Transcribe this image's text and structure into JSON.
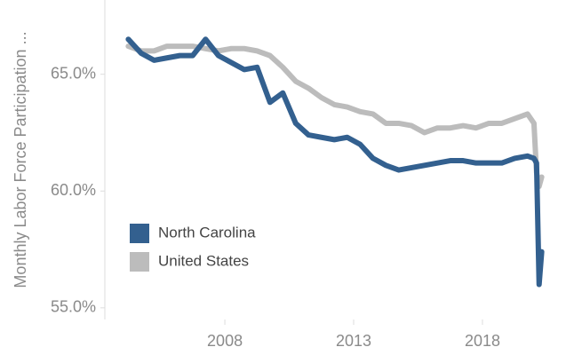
{
  "chart_data": {
    "type": "line",
    "y_label": "Monthly Labor Force Participation ...",
    "x": [
      2004.25,
      2004.75,
      2005.25,
      2005.75,
      2006.25,
      2006.75,
      2007.25,
      2007.75,
      2008.25,
      2008.75,
      2009.25,
      2009.75,
      2010.25,
      2010.75,
      2011.25,
      2011.75,
      2012.25,
      2012.75,
      2013.25,
      2013.75,
      2014.25,
      2014.75,
      2015.25,
      2015.75,
      2016.25,
      2016.75,
      2017.25,
      2017.75,
      2018.25,
      2018.75,
      2019.25,
      2019.75,
      2020.0,
      2020.1,
      2020.2,
      2020.3
    ],
    "series": [
      {
        "name": "North Carolina",
        "color": "#33608f",
        "values": [
          66.5,
          65.9,
          65.6,
          65.7,
          65.8,
          65.8,
          66.5,
          65.8,
          65.5,
          65.2,
          65.3,
          63.8,
          64.2,
          62.9,
          62.4,
          62.3,
          62.2,
          62.3,
          62.0,
          61.4,
          61.1,
          60.9,
          61.0,
          61.1,
          61.2,
          61.3,
          61.3,
          61.2,
          61.2,
          61.2,
          61.4,
          61.5,
          61.4,
          61.2,
          56.0,
          57.4
        ]
      },
      {
        "name": "United States",
        "color": "#bcbcbc",
        "values": [
          66.2,
          66.0,
          66.0,
          66.2,
          66.2,
          66.2,
          66.1,
          66.0,
          66.1,
          66.1,
          66.0,
          65.8,
          65.3,
          64.7,
          64.4,
          64.0,
          63.7,
          63.6,
          63.4,
          63.3,
          62.9,
          62.9,
          62.8,
          62.5,
          62.7,
          62.7,
          62.8,
          62.7,
          62.9,
          62.9,
          63.1,
          63.3,
          62.9,
          60.8,
          60.2,
          60.6
        ]
      }
    ],
    "xlim": [
      2003.34,
      2020.83
    ],
    "xticks": [
      2008,
      2013,
      2018
    ],
    "ylim": [
      54.5,
      67.8
    ],
    "yticks": [
      {
        "value": 55,
        "label": "55.0%"
      },
      {
        "value": 60,
        "label": "60.0%"
      },
      {
        "value": 65,
        "label": "65.0%"
      }
    ],
    "legend": "lower left"
  }
}
